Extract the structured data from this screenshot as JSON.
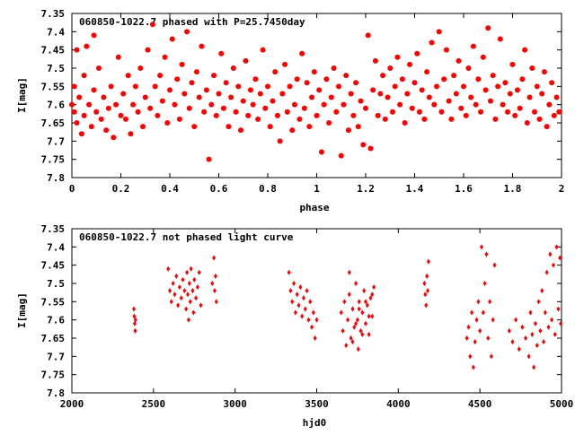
{
  "chart_data": [
    {
      "type": "scatter",
      "title": "060850-1022.7 phased with P=25.7450day",
      "xlabel": "phase",
      "ylabel": "I[mag]",
      "xlim": [
        0,
        2
      ],
      "ylim": [
        7.35,
        7.8
      ],
      "y_inverted": true,
      "grid": false,
      "marker_color": "#ff0000",
      "marker": "filled-circle",
      "xticks": [
        "0",
        "0.2",
        "0.4",
        "0.6",
        "0.8",
        "1",
        "1.2",
        "1.4",
        "1.6",
        "1.8",
        "2"
      ],
      "xtick_values": [
        0,
        0.2,
        0.4,
        0.6,
        0.8,
        1,
        1.2,
        1.4,
        1.6,
        1.8,
        2
      ],
      "yticks": [
        "7.35",
        "7.4",
        "7.45",
        "7.5",
        "7.55",
        "7.6",
        "7.65",
        "7.7",
        "7.75",
        "7.8"
      ],
      "ytick_values": [
        7.35,
        7.4,
        7.45,
        7.5,
        7.55,
        7.6,
        7.65,
        7.7,
        7.75,
        7.8
      ],
      "points": [
        [
          0.0,
          7.6
        ],
        [
          0.01,
          7.62
        ],
        [
          0.01,
          7.55
        ],
        [
          0.02,
          7.45
        ],
        [
          0.02,
          7.65
        ],
        [
          0.03,
          7.58
        ],
        [
          0.04,
          7.68
        ],
        [
          0.05,
          7.52
        ],
        [
          0.05,
          7.63
        ],
        [
          0.06,
          7.44
        ],
        [
          0.07,
          7.6
        ],
        [
          0.08,
          7.66
        ],
        [
          0.09,
          7.56
        ],
        [
          0.09,
          7.41
        ],
        [
          0.1,
          7.62
        ],
        [
          0.11,
          7.5
        ],
        [
          0.12,
          7.64
        ],
        [
          0.13,
          7.58
        ],
        [
          0.14,
          7.67
        ],
        [
          0.15,
          7.61
        ],
        [
          0.16,
          7.55
        ],
        [
          0.17,
          7.69
        ],
        [
          0.18,
          7.6
        ],
        [
          0.19,
          7.47
        ],
        [
          0.2,
          7.63
        ],
        [
          0.21,
          7.57
        ],
        [
          0.22,
          7.64
        ],
        [
          0.23,
          7.52
        ],
        [
          0.24,
          7.68
        ],
        [
          0.25,
          7.6
        ],
        [
          0.26,
          7.55
        ],
        [
          0.27,
          7.62
        ],
        [
          0.28,
          7.5
        ],
        [
          0.29,
          7.66
        ],
        [
          0.3,
          7.58
        ],
        [
          0.31,
          7.45
        ],
        [
          0.32,
          7.61
        ],
        [
          0.33,
          7.38
        ],
        [
          0.34,
          7.55
        ],
        [
          0.35,
          7.63
        ],
        [
          0.36,
          7.52
        ],
        [
          0.37,
          7.59
        ],
        [
          0.38,
          7.47
        ],
        [
          0.39,
          7.65
        ],
        [
          0.4,
          7.56
        ],
        [
          0.41,
          7.42
        ],
        [
          0.42,
          7.6
        ],
        [
          0.43,
          7.53
        ],
        [
          0.44,
          7.64
        ],
        [
          0.45,
          7.49
        ],
        [
          0.46,
          7.57
        ],
        [
          0.47,
          7.4
        ],
        [
          0.48,
          7.61
        ],
        [
          0.49,
          7.54
        ],
        [
          0.5,
          7.66
        ],
        [
          0.51,
          7.51
        ],
        [
          0.52,
          7.58
        ],
        [
          0.53,
          7.44
        ],
        [
          0.54,
          7.62
        ],
        [
          0.55,
          7.56
        ],
        [
          0.56,
          7.75
        ],
        [
          0.57,
          7.6
        ],
        [
          0.58,
          7.52
        ],
        [
          0.59,
          7.63
        ],
        [
          0.6,
          7.57
        ],
        [
          0.61,
          7.46
        ],
        [
          0.62,
          7.61
        ],
        [
          0.63,
          7.54
        ],
        [
          0.64,
          7.66
        ],
        [
          0.65,
          7.58
        ],
        [
          0.66,
          7.5
        ],
        [
          0.67,
          7.62
        ],
        [
          0.68,
          7.55
        ],
        [
          0.69,
          7.67
        ],
        [
          0.7,
          7.59
        ],
        [
          0.71,
          7.48
        ],
        [
          0.72,
          7.63
        ],
        [
          0.73,
          7.56
        ],
        [
          0.74,
          7.6
        ],
        [
          0.75,
          7.53
        ],
        [
          0.76,
          7.64
        ],
        [
          0.77,
          7.57
        ],
        [
          0.78,
          7.45
        ],
        [
          0.79,
          7.61
        ],
        [
          0.8,
          7.55
        ],
        [
          0.81,
          7.66
        ],
        [
          0.82,
          7.59
        ],
        [
          0.83,
          7.51
        ],
        [
          0.84,
          7.63
        ],
        [
          0.85,
          7.7
        ],
        [
          0.86,
          7.57
        ],
        [
          0.87,
          7.49
        ],
        [
          0.88,
          7.62
        ],
        [
          0.89,
          7.55
        ],
        [
          0.9,
          7.67
        ],
        [
          0.91,
          7.6
        ],
        [
          0.92,
          7.53
        ],
        [
          0.93,
          7.64
        ],
        [
          0.94,
          7.46
        ],
        [
          0.95,
          7.61
        ],
        [
          0.96,
          7.54
        ],
        [
          0.97,
          7.66
        ],
        [
          0.98,
          7.58
        ],
        [
          0.99,
          7.51
        ],
        [
          1.0,
          7.63
        ],
        [
          1.01,
          7.56
        ],
        [
          1.02,
          7.73
        ],
        [
          1.03,
          7.6
        ],
        [
          1.04,
          7.53
        ],
        [
          1.05,
          7.65
        ],
        [
          1.06,
          7.58
        ],
        [
          1.07,
          7.5
        ],
        [
          1.08,
          7.62
        ],
        [
          1.09,
          7.55
        ],
        [
          1.1,
          7.74
        ],
        [
          1.11,
          7.6
        ],
        [
          1.12,
          7.52
        ],
        [
          1.13,
          7.67
        ],
        [
          1.14,
          7.57
        ],
        [
          1.15,
          7.63
        ],
        [
          1.16,
          7.54
        ],
        [
          1.17,
          7.66
        ],
        [
          1.18,
          7.59
        ],
        [
          1.19,
          7.71
        ],
        [
          1.2,
          7.61
        ],
        [
          1.21,
          7.41
        ],
        [
          1.22,
          7.72
        ],
        [
          1.23,
          7.56
        ],
        [
          1.24,
          7.48
        ],
        [
          1.25,
          7.63
        ],
        [
          1.26,
          7.57
        ],
        [
          1.27,
          7.52
        ],
        [
          1.28,
          7.64
        ],
        [
          1.29,
          7.58
        ],
        [
          1.3,
          7.5
        ],
        [
          1.31,
          7.62
        ],
        [
          1.32,
          7.55
        ],
        [
          1.33,
          7.47
        ],
        [
          1.34,
          7.6
        ],
        [
          1.35,
          7.53
        ],
        [
          1.36,
          7.65
        ],
        [
          1.37,
          7.57
        ],
        [
          1.38,
          7.49
        ],
        [
          1.39,
          7.61
        ],
        [
          1.4,
          7.54
        ],
        [
          1.41,
          7.46
        ],
        [
          1.42,
          7.62
        ],
        [
          1.43,
          7.56
        ],
        [
          1.44,
          7.64
        ],
        [
          1.45,
          7.51
        ],
        [
          1.46,
          7.58
        ],
        [
          1.47,
          7.43
        ],
        [
          1.48,
          7.6
        ],
        [
          1.49,
          7.55
        ],
        [
          1.5,
          7.4
        ],
        [
          1.51,
          7.62
        ],
        [
          1.52,
          7.53
        ],
        [
          1.53,
          7.45
        ],
        [
          1.54,
          7.59
        ],
        [
          1.55,
          7.64
        ],
        [
          1.56,
          7.52
        ],
        [
          1.57,
          7.57
        ],
        [
          1.58,
          7.48
        ],
        [
          1.59,
          7.61
        ],
        [
          1.6,
          7.55
        ],
        [
          1.61,
          7.63
        ],
        [
          1.62,
          7.5
        ],
        [
          1.63,
          7.58
        ],
        [
          1.64,
          7.44
        ],
        [
          1.65,
          7.6
        ],
        [
          1.66,
          7.53
        ],
        [
          1.67,
          7.62
        ],
        [
          1.68,
          7.47
        ],
        [
          1.69,
          7.56
        ],
        [
          1.7,
          7.39
        ],
        [
          1.71,
          7.59
        ],
        [
          1.72,
          7.52
        ],
        [
          1.73,
          7.64
        ],
        [
          1.74,
          7.55
        ],
        [
          1.75,
          7.42
        ],
        [
          1.76,
          7.6
        ],
        [
          1.77,
          7.54
        ],
        [
          1.78,
          7.62
        ],
        [
          1.79,
          7.57
        ],
        [
          1.8,
          7.49
        ],
        [
          1.81,
          7.63
        ],
        [
          1.82,
          7.56
        ],
        [
          1.83,
          7.61
        ],
        [
          1.84,
          7.53
        ],
        [
          1.85,
          7.45
        ],
        [
          1.86,
          7.65
        ],
        [
          1.87,
          7.58
        ],
        [
          1.88,
          7.5
        ],
        [
          1.89,
          7.62
        ],
        [
          1.9,
          7.55
        ],
        [
          1.91,
          7.64
        ],
        [
          1.92,
          7.57
        ],
        [
          1.93,
          7.51
        ],
        [
          1.94,
          7.66
        ],
        [
          1.95,
          7.6
        ],
        [
          1.96,
          7.54
        ],
        [
          1.97,
          7.63
        ],
        [
          1.98,
          7.58
        ],
        [
          1.99,
          7.62
        ]
      ]
    },
    {
      "type": "scatter",
      "title": "060850-1022.7 not phased light curve",
      "xlabel": "hjd0",
      "ylabel": "I[mag]",
      "xlim": [
        2000,
        5000
      ],
      "ylim": [
        7.35,
        7.8
      ],
      "y_inverted": true,
      "grid": false,
      "marker_color": "#ff0000",
      "marker": "diamond",
      "xticks": [
        "2000",
        "2500",
        "3000",
        "3500",
        "4000",
        "4500",
        "5000"
      ],
      "xtick_values": [
        2000,
        2500,
        3000,
        3500,
        4000,
        4500,
        5000
      ],
      "yticks": [
        "7.35",
        "7.4",
        "7.45",
        "7.5",
        "7.55",
        "7.6",
        "7.65",
        "7.7",
        "7.75",
        "7.8"
      ],
      "ytick_values": [
        7.35,
        7.4,
        7.45,
        7.5,
        7.55,
        7.6,
        7.65,
        7.7,
        7.75,
        7.8
      ],
      "points": [
        [
          2380,
          7.57
        ],
        [
          2382,
          7.59
        ],
        [
          2385,
          7.61
        ],
        [
          2388,
          7.63
        ],
        [
          2390,
          7.6
        ],
        [
          2590,
          7.46
        ],
        [
          2600,
          7.52
        ],
        [
          2610,
          7.55
        ],
        [
          2620,
          7.5
        ],
        [
          2630,
          7.53
        ],
        [
          2640,
          7.48
        ],
        [
          2650,
          7.56
        ],
        [
          2660,
          7.51
        ],
        [
          2670,
          7.54
        ],
        [
          2680,
          7.49
        ],
        [
          2690,
          7.52
        ],
        [
          2700,
          7.57
        ],
        [
          2705,
          7.47
        ],
        [
          2710,
          7.53
        ],
        [
          2715,
          7.6
        ],
        [
          2720,
          7.5
        ],
        [
          2725,
          7.55
        ],
        [
          2730,
          7.46
        ],
        [
          2740,
          7.52
        ],
        [
          2745,
          7.58
        ],
        [
          2750,
          7.49
        ],
        [
          2760,
          7.54
        ],
        [
          2770,
          7.51
        ],
        [
          2780,
          7.47
        ],
        [
          2790,
          7.56
        ],
        [
          2860,
          7.5
        ],
        [
          2870,
          7.43
        ],
        [
          2875,
          7.52
        ],
        [
          2880,
          7.48
        ],
        [
          2885,
          7.55
        ],
        [
          3330,
          7.47
        ],
        [
          3340,
          7.52
        ],
        [
          3350,
          7.55
        ],
        [
          3360,
          7.5
        ],
        [
          3370,
          7.58
        ],
        [
          3380,
          7.53
        ],
        [
          3390,
          7.56
        ],
        [
          3400,
          7.51
        ],
        [
          3410,
          7.59
        ],
        [
          3420,
          7.54
        ],
        [
          3430,
          7.57
        ],
        [
          3440,
          7.52
        ],
        [
          3450,
          7.6
        ],
        [
          3460,
          7.55
        ],
        [
          3470,
          7.62
        ],
        [
          3480,
          7.58
        ],
        [
          3490,
          7.65
        ],
        [
          3500,
          7.6
        ],
        [
          3650,
          7.58
        ],
        [
          3660,
          7.63
        ],
        [
          3670,
          7.55
        ],
        [
          3680,
          7.67
        ],
        [
          3690,
          7.6
        ],
        [
          3700,
          7.53
        ],
        [
          3710,
          7.65
        ],
        [
          3720,
          7.57
        ],
        [
          3730,
          7.62
        ],
        [
          3740,
          7.5
        ],
        [
          3750,
          7.6
        ],
        [
          3755,
          7.68
        ],
        [
          3760,
          7.55
        ],
        [
          3770,
          7.63
        ],
        [
          3780,
          7.58
        ],
        [
          3790,
          7.52
        ],
        [
          3800,
          7.61
        ],
        [
          3810,
          7.56
        ],
        [
          3820,
          7.64
        ],
        [
          3830,
          7.54
        ],
        [
          3840,
          7.59
        ],
        [
          3850,
          7.51
        ],
        [
          3700,
          7.47
        ],
        [
          3720,
          7.66
        ],
        [
          3740,
          7.61
        ],
        [
          3760,
          7.57
        ],
        [
          3780,
          7.64
        ],
        [
          3800,
          7.55
        ],
        [
          3820,
          7.59
        ],
        [
          3840,
          7.53
        ],
        [
          4160,
          7.5
        ],
        [
          4165,
          7.53
        ],
        [
          4170,
          7.56
        ],
        [
          4175,
          7.48
        ],
        [
          4180,
          7.52
        ],
        [
          4185,
          7.44
        ],
        [
          4420,
          7.65
        ],
        [
          4430,
          7.62
        ],
        [
          4440,
          7.7
        ],
        [
          4450,
          7.58
        ],
        [
          4460,
          7.73
        ],
        [
          4470,
          7.66
        ],
        [
          4480,
          7.6
        ],
        [
          4490,
          7.55
        ],
        [
          4500,
          7.63
        ],
        [
          4510,
          7.4
        ],
        [
          4520,
          7.58
        ],
        [
          4530,
          7.5
        ],
        [
          4540,
          7.42
        ],
        [
          4550,
          7.65
        ],
        [
          4560,
          7.55
        ],
        [
          4570,
          7.7
        ],
        [
          4580,
          7.6
        ],
        [
          4590,
          7.45
        ],
        [
          4680,
          7.63
        ],
        [
          4700,
          7.66
        ],
        [
          4720,
          7.6
        ],
        [
          4740,
          7.68
        ],
        [
          4760,
          7.62
        ],
        [
          4780,
          7.65
        ],
        [
          4800,
          7.7
        ],
        [
          4810,
          7.58
        ],
        [
          4820,
          7.64
        ],
        [
          4830,
          7.73
        ],
        [
          4840,
          7.61
        ],
        [
          4850,
          7.67
        ],
        [
          4860,
          7.55
        ],
        [
          4870,
          7.63
        ],
        [
          4880,
          7.52
        ],
        [
          4890,
          7.66
        ],
        [
          4900,
          7.58
        ],
        [
          4910,
          7.47
        ],
        [
          4920,
          7.62
        ],
        [
          4930,
          7.42
        ],
        [
          4940,
          7.6
        ],
        [
          4950,
          7.45
        ],
        [
          4960,
          7.64
        ],
        [
          4970,
          7.4
        ],
        [
          4980,
          7.57
        ],
        [
          4990,
          7.43
        ],
        [
          4995,
          7.61
        ]
      ]
    }
  ]
}
